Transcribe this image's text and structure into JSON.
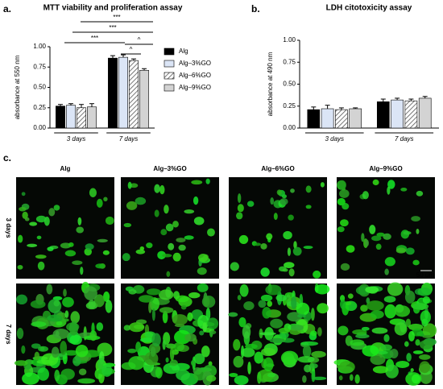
{
  "chart_data": [
    {
      "type": "bar",
      "panel": "a.",
      "title": "MTT viability and proliferation assay",
      "y_label": "absorbance at 550 nm",
      "categories": [
        "3 days",
        "7 days"
      ],
      "series": [
        {
          "name": "Alg",
          "color": "#000000",
          "values": [
            0.27,
            0.86
          ],
          "errors": [
            0.02,
            0.03
          ]
        },
        {
          "name": "Alg–3%GO",
          "color": "#dbe5f6",
          "values": [
            0.28,
            0.87
          ],
          "errors": [
            0.02,
            0.03
          ]
        },
        {
          "name": "Alg–6%GO",
          "color": "#ffffff",
          "hatch": true,
          "values": [
            0.25,
            0.83
          ],
          "errors": [
            0.04,
            0.02
          ]
        },
        {
          "name": "Alg–9%GO",
          "color": "#d3d3d3",
          "values": [
            0.26,
            0.71
          ],
          "errors": [
            0.04,
            0.02
          ]
        }
      ],
      "ylim": [
        0,
        1.0
      ],
      "yticks": [
        {
          "value": 0,
          "label": "0.00"
        },
        {
          "value": 0.25,
          "label": "0.25"
        },
        {
          "value": 0.5,
          "label": "0.50"
        },
        {
          "value": 0.75,
          "label": "0.75"
        },
        {
          "value": 1.0,
          "label": "1.00"
        }
      ],
      "legend": "right",
      "annotations": [
        "***",
        "***",
        "***",
        "^",
        "^"
      ]
    },
    {
      "type": "bar",
      "panel": "b.",
      "title": "LDH citotoxicity assay",
      "y_label": "absorbance at 490 nm",
      "categories": [
        "3 days",
        "7 days"
      ],
      "series": [
        {
          "color": "#000000",
          "values": [
            0.21,
            0.3
          ],
          "errors": [
            0.03,
            0.03
          ]
        },
        {
          "color": "#dbe5f6",
          "values": [
            0.22,
            0.32
          ],
          "errors": [
            0.04,
            0.02
          ]
        },
        {
          "color": "#ffffff",
          "hatch": true,
          "values": [
            0.21,
            0.31
          ],
          "errors": [
            0.02,
            0.02
          ]
        },
        {
          "color": "#d3d3d3",
          "values": [
            0.22,
            0.34
          ],
          "errors": [
            0.01,
            0.02
          ]
        }
      ],
      "ylim": [
        0,
        1.0
      ],
      "yticks": [
        {
          "value": 0,
          "label": "0.00"
        },
        {
          "value": 0.25,
          "label": "0.25"
        },
        {
          "value": 0.5,
          "label": "0.50"
        },
        {
          "value": 0.75,
          "label": "0.75"
        },
        {
          "value": 1.0,
          "label": "1.00"
        }
      ]
    }
  ],
  "images": {
    "panel": "c.",
    "columns": [
      "Alg",
      "Alg–3%GO",
      "Alg–6%GO",
      "Alg–9%GO"
    ],
    "rows": [
      "3 days",
      "7 days"
    ],
    "scale_bar": "50 µm"
  }
}
